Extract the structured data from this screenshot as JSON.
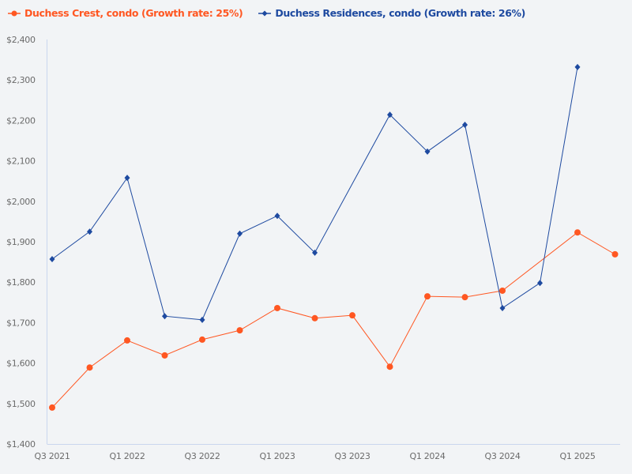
{
  "chart_data": {
    "type": "line",
    "title": "",
    "xlabel": "",
    "ylabel": "",
    "categories": [
      "Q3 2021",
      "Q4 2021",
      "Q1 2022",
      "Q2 2022",
      "Q3 2022",
      "Q4 2022",
      "Q1 2023",
      "Q2 2023",
      "Q3 2023",
      "Q4 2023",
      "Q1 2024",
      "Q2 2024",
      "Q3 2024",
      "Q4 2024",
      "Q1 2025",
      "Q2 2025"
    ],
    "x_tick_labels": [
      "Q3 2021",
      "Q1 2022",
      "Q3 2022",
      "Q1 2023",
      "Q3 2023",
      "Q1 2024",
      "Q3 2024",
      "Q1 2025"
    ],
    "y_tick_labels": [
      "$1,400",
      "$1,500",
      "$1,600",
      "$1,700",
      "$1,800",
      "$1,900",
      "$2,000",
      "$2,100",
      "$2,200",
      "$2,300",
      "$2,400"
    ],
    "ylim": [
      1400,
      2400
    ],
    "grid": false,
    "legend_position": "top-left",
    "series": [
      {
        "name": "Duchess Crest, condo (Growth rate: 25%)",
        "color": "#ff5722",
        "marker": "circle",
        "values": [
          1490,
          1589,
          1656,
          1619,
          1658,
          1681,
          1736,
          1711,
          1718,
          1591,
          1765,
          1763,
          1779,
          null,
          1923,
          1869
        ]
      },
      {
        "name": "Duchess Residences, condo (Growth rate: 26%)",
        "color": "#1e4aa0",
        "marker": "diamond",
        "values": [
          1857,
          1925,
          2058,
          1716,
          1707,
          1920,
          1964,
          1873,
          null,
          2214,
          2123,
          2189,
          1736,
          1798,
          2332,
          null
        ]
      }
    ]
  }
}
